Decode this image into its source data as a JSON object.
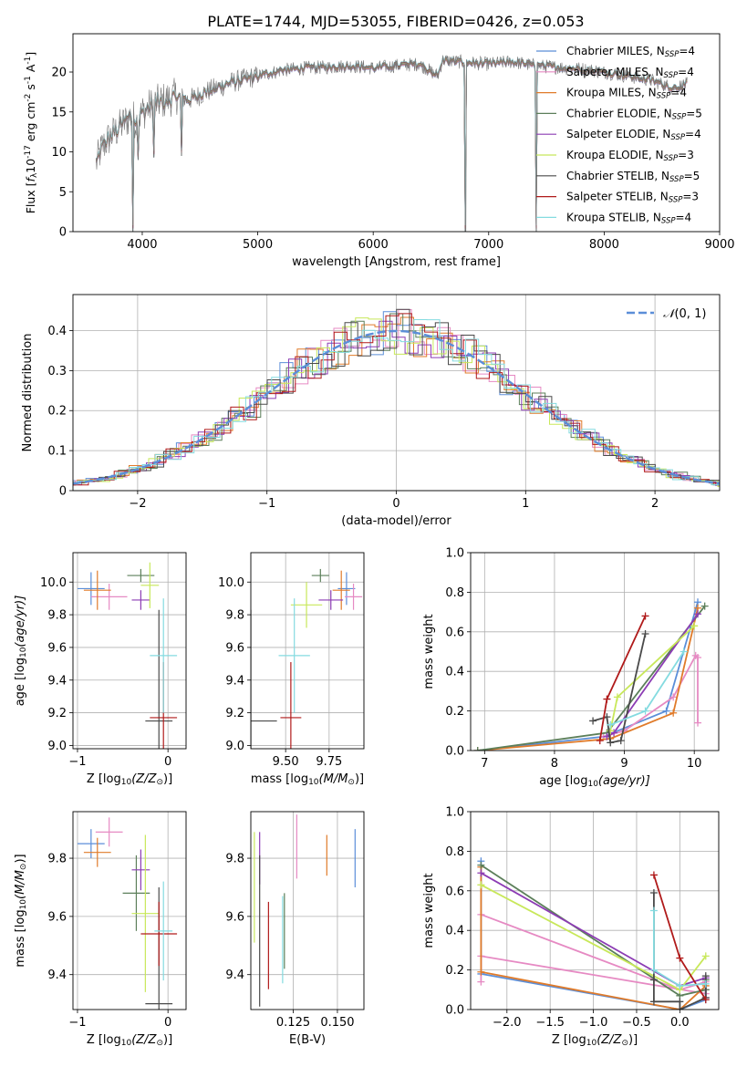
{
  "title": "PLATE=1744, MJD=53055, FIBERID=0426, z=0.053",
  "models": [
    {
      "name": "Chabrier MILES",
      "nssp": "4",
      "color": "#5b8ed8"
    },
    {
      "name": "Salpeter MILES",
      "nssp": "4",
      "color": "#e68ac3"
    },
    {
      "name": "Kroupa MILES",
      "nssp": "4",
      "color": "#e07b2a"
    },
    {
      "name": "Chabrier ELODIE",
      "nssp": "5",
      "color": "#5c7f5a"
    },
    {
      "name": "Salpeter ELODIE",
      "nssp": "4",
      "color": "#8c3cb4"
    },
    {
      "name": "Kroupa ELODIE",
      "nssp": "3",
      "color": "#c8e85a"
    },
    {
      "name": "Chabrier STELIB",
      "nssp": "5",
      "color": "#4a4a4a"
    },
    {
      "name": "Salpeter STELIB",
      "nssp": "3",
      "color": "#b01a1a"
    },
    {
      "name": "Kroupa STELIB",
      "nssp": "4",
      "color": "#84dbe0"
    }
  ],
  "nssp_prefix": "N",
  "nssp_sub": "SSP",
  "chart_data": [
    {
      "id": "spectrum",
      "type": "line",
      "xlabel": "wavelength [Angstrom, rest frame]",
      "ylabel_parts": [
        "Flux [",
        "f",
        "λ",
        "10",
        "-17",
        " erg cm",
        "-2",
        " s",
        "-1",
        " A",
        "-1",
        "]"
      ],
      "xlim": [
        3400,
        9000
      ],
      "ylim": [
        0,
        24.8
      ],
      "xticks": [
        4000,
        5000,
        6000,
        7000,
        8000,
        9000
      ],
      "yticks": [
        0,
        5,
        10,
        15,
        20
      ],
      "data_range": [
        3600,
        8720
      ],
      "anchors": {
        "x": [
          3600,
          3650,
          3700,
          3800,
          3900,
          3950,
          4000,
          4100,
          4200,
          4300,
          4400,
          4600,
          4800,
          5000,
          5200,
          5400,
          5600,
          5800,
          6000,
          6200,
          6400,
          6560,
          6600,
          6800,
          7000,
          7200,
          7400,
          7600,
          7800,
          8000,
          8200,
          8400,
          8600,
          8720
        ],
        "y": [
          8.5,
          10.5,
          11.5,
          13.0,
          14.5,
          13.8,
          15.0,
          16.0,
          16.5,
          17.0,
          16.5,
          17.8,
          18.8,
          19.5,
          20.2,
          20.5,
          20.6,
          20.8,
          20.5,
          20.8,
          21.0,
          19.5,
          21.5,
          21.2,
          21.0,
          21.3,
          20.8,
          20.6,
          20.4,
          20.0,
          19.5,
          19.0,
          18.0,
          18.5
        ]
      },
      "spikes": [
        [
          3920,
          0
        ],
        [
          3965,
          9.0
        ],
        [
          4100,
          9.3
        ],
        [
          4340,
          9.5
        ],
        [
          6800,
          0
        ],
        [
          7410,
          0
        ]
      ]
    },
    {
      "id": "residuals",
      "type": "histogram",
      "xlabel": "(data-model)/error",
      "ylabel": "Normed distribution",
      "xlim": [
        -2.5,
        2.5
      ],
      "ylim": [
        0,
        0.49
      ],
      "xticks": [
        -2,
        -1,
        0,
        1,
        2
      ],
      "yticks": [
        0,
        0.1,
        0.2,
        0.3,
        0.4
      ],
      "bin_width": 0.1,
      "legend": {
        "label_parts": [
          "𝒩",
          "(0, 1)"
        ],
        "position": "top-right"
      },
      "base_curve": "standard normal"
    },
    {
      "id": "age_vs_Z",
      "type": "scatter",
      "xlabel_parts": [
        "Z [log",
        "10",
        "(Z/Z",
        "⊙",
        ")]"
      ],
      "ylabel_parts": [
        "age  [log",
        "10",
        "(age/yr)]"
      ],
      "xlim": [
        -1.05,
        0.2
      ],
      "ylim": [
        8.98,
        10.18
      ],
      "xticks": [
        -1,
        0
      ],
      "yticks": [
        9.0,
        9.2,
        9.4,
        9.6,
        9.8,
        10.0
      ],
      "points": [
        {
          "x": -0.85,
          "y": 9.96,
          "xerr": 0.15,
          "yerr": 0.1
        },
        {
          "x": -0.65,
          "y": 9.91,
          "xerr": 0.2,
          "yerr": 0.08
        },
        {
          "x": -0.78,
          "y": 9.95,
          "xerr": 0.15,
          "yerr": 0.12
        },
        {
          "x": -0.3,
          "y": 10.04,
          "xerr": 0.15,
          "yerr": 0.04
        },
        {
          "x": -0.3,
          "y": 9.89,
          "xerr": 0.1,
          "yerr": 0.06
        },
        {
          "x": -0.2,
          "y": 9.98,
          "xerr": 0.1,
          "yerr": 0.14
        },
        {
          "x": -0.1,
          "y": 9.15,
          "xerr": 0.15,
          "yerr": 0.68
        },
        {
          "x": -0.05,
          "y": 9.17,
          "xerr": 0.15,
          "yerr": 0.34
        },
        {
          "x": -0.05,
          "y": 9.55,
          "xerr": 0.15,
          "yerr": 0.35
        }
      ]
    },
    {
      "id": "age_vs_mass",
      "type": "scatter",
      "xlabel_parts": [
        "mass [log",
        "10",
        "(M/M",
        "⊙",
        ")]"
      ],
      "ylabel": "",
      "xlim": [
        9.3,
        9.95
      ],
      "ylim": [
        8.98,
        10.18
      ],
      "xticks": [
        9.5,
        9.75
      ],
      "yticks": [
        9.0,
        9.2,
        9.4,
        9.6,
        9.8,
        10.0
      ],
      "points": [
        {
          "x": 9.85,
          "y": 9.96,
          "xerr": 0.05,
          "yerr": 0.1
        },
        {
          "x": 9.89,
          "y": 9.91,
          "xerr": 0.05,
          "yerr": 0.08
        },
        {
          "x": 9.82,
          "y": 9.95,
          "xerr": 0.05,
          "yerr": 0.12
        },
        {
          "x": 9.7,
          "y": 10.04,
          "xerr": 0.05,
          "yerr": 0.04
        },
        {
          "x": 9.76,
          "y": 9.89,
          "xerr": 0.07,
          "yerr": 0.06
        },
        {
          "x": 9.62,
          "y": 9.86,
          "xerr": 0.09,
          "yerr": 0.14
        },
        {
          "x": 9.3,
          "y": 9.15,
          "xerr": 0.15,
          "yerr": 0.68
        },
        {
          "x": 9.53,
          "y": 9.17,
          "xerr": 0.06,
          "yerr": 0.34
        },
        {
          "x": 9.55,
          "y": 9.55,
          "xerr": 0.09,
          "yerr": 0.35
        }
      ]
    },
    {
      "id": "weight_vs_age",
      "type": "line",
      "xlabel_parts": [
        "age  [log",
        "10",
        "(age/yr)]"
      ],
      "ylabel": "mass weight",
      "xlim": [
        6.8,
        10.35
      ],
      "ylim": [
        0,
        1.0
      ],
      "xticks": [
        7,
        8,
        9,
        10
      ],
      "yticks": [
        0.0,
        0.2,
        0.4,
        0.6,
        0.8,
        1.0
      ],
      "series": [
        {
          "x": [
            6.9,
            8.7,
            9.6,
            10.05
          ],
          "y": [
            0.0,
            0.07,
            0.2,
            0.75
          ]
        },
        {
          "x": [
            8.7,
            9.0,
            9.7,
            10.02,
            10.05,
            10.05
          ],
          "y": [
            0.07,
            0.1,
            0.27,
            0.48,
            0.47,
            0.14
          ]
        },
        {
          "x": [
            6.9,
            8.8,
            9.7,
            10.05
          ],
          "y": [
            0.0,
            0.06,
            0.19,
            0.72
          ]
        },
        {
          "x": [
            6.9,
            8.75,
            10.15
          ],
          "y": [
            0.0,
            0.09,
            0.73
          ]
        },
        {
          "x": [
            8.75,
            8.85,
            10.05
          ],
          "y": [
            0.07,
            0.09,
            0.69
          ]
        },
        {
          "x": [
            8.8,
            8.9,
            10.0
          ],
          "y": [
            0.1,
            0.27,
            0.63
          ]
        },
        {
          "x": [
            8.55,
            8.75,
            8.8,
            8.95,
            9.3
          ],
          "y": [
            0.15,
            0.17,
            0.04,
            0.05,
            0.59
          ]
        },
        {
          "x": [
            8.65,
            8.75,
            9.3
          ],
          "y": [
            0.05,
            0.26,
            0.68
          ]
        },
        {
          "x": [
            8.8,
            9.3,
            9.85
          ],
          "y": [
            0.13,
            0.2,
            0.5
          ]
        }
      ]
    },
    {
      "id": "mass_vs_Z",
      "type": "scatter",
      "xlabel_parts": [
        "Z [log",
        "10",
        "(Z/Z",
        "⊙",
        ")]"
      ],
      "ylabel_parts": [
        "mass [log",
        "10",
        "(M/M",
        "⊙",
        ")]"
      ],
      "xlim": [
        -1.05,
        0.2
      ],
      "ylim": [
        9.28,
        9.96
      ],
      "xticks": [
        -1,
        0
      ],
      "yticks": [
        9.4,
        9.6,
        9.8
      ],
      "points": [
        {
          "x": -0.85,
          "y": 9.85,
          "xerr": 0.15,
          "yerr": 0.05
        },
        {
          "x": -0.65,
          "y": 9.89,
          "xerr": 0.15,
          "yerr": 0.05
        },
        {
          "x": -0.78,
          "y": 9.82,
          "xerr": 0.15,
          "yerr": 0.05
        },
        {
          "x": -0.35,
          "y": 9.68,
          "xerr": 0.15,
          "yerr": 0.13
        },
        {
          "x": -0.3,
          "y": 9.76,
          "xerr": 0.1,
          "yerr": 0.07
        },
        {
          "x": -0.25,
          "y": 9.61,
          "xerr": 0.15,
          "yerr": 0.27
        },
        {
          "x": -0.1,
          "y": 9.3,
          "xerr": 0.15,
          "yerr": 0.4
        },
        {
          "x": -0.1,
          "y": 9.54,
          "xerr": 0.2,
          "yerr": 0.11
        },
        {
          "x": -0.05,
          "y": 9.55,
          "xerr": 0.1,
          "yerr": 0.17
        }
      ]
    },
    {
      "id": "mass_vs_ebv",
      "type": "scatter",
      "xlabel": "E(B-V)",
      "ylabel": "",
      "xlim": [
        0.101,
        0.165
      ],
      "ylim": [
        9.28,
        9.96
      ],
      "xticks": [
        0.125,
        0.15
      ],
      "yticks": [
        9.4,
        9.6,
        9.8
      ],
      "points": [
        {
          "x": 0.16,
          "y": 9.8,
          "yerr": 0.1
        },
        {
          "x": 0.127,
          "y": 9.84,
          "yerr": 0.11
        },
        {
          "x": 0.144,
          "y": 9.81,
          "yerr": 0.07
        },
        {
          "x": 0.12,
          "y": 9.55,
          "yerr": 0.13
        },
        {
          "x": 0.106,
          "y": 9.8,
          "yerr": 0.09
        },
        {
          "x": 0.103,
          "y": 9.7,
          "yerr": 0.19
        },
        {
          "x": 0.106,
          "y": 9.55,
          "yerr": 0.26
        },
        {
          "x": 0.111,
          "y": 9.5,
          "yerr": 0.15
        },
        {
          "x": 0.119,
          "y": 9.52,
          "yerr": 0.15
        }
      ]
    },
    {
      "id": "weight_vs_Z",
      "type": "line",
      "xlabel_parts": [
        "Z [log",
        "10",
        "(Z/Z",
        "⊙",
        ")]"
      ],
      "ylabel": "mass weight",
      "xlim": [
        -2.42,
        0.45
      ],
      "ylim": [
        0,
        1.0
      ],
      "xticks": [
        -2.0,
        -1.5,
        -1.0,
        -0.5,
        0.0
      ],
      "yticks": [
        0.0,
        0.2,
        0.4,
        0.6,
        0.8,
        1.0
      ],
      "series": [
        {
          "x": [
            -2.3,
            -2.3,
            0.0,
            0.3,
            0.3
          ],
          "y": [
            0.75,
            0.18,
            0.0,
            0.05,
            0.1
          ]
        },
        {
          "x": [
            -2.3,
            0.0,
            0.3,
            0.3,
            0.3,
            -2.3,
            -2.3
          ],
          "y": [
            0.48,
            0.1,
            0.14,
            0.1,
            0.08,
            0.27,
            0.14
          ]
        },
        {
          "x": [
            -2.3,
            -2.3,
            0.0,
            0.3
          ],
          "y": [
            0.72,
            0.19,
            0.0,
            0.12
          ]
        },
        {
          "x": [
            -2.3,
            0.0,
            0.3,
            0.3
          ],
          "y": [
            0.73,
            0.07,
            0.1,
            0.15
          ]
        },
        {
          "x": [
            -2.3,
            0.0,
            0.3,
            0.3
          ],
          "y": [
            0.69,
            0.12,
            0.16,
            0.06
          ]
        },
        {
          "x": [
            -2.3,
            0.0,
            0.3
          ],
          "y": [
            0.63,
            0.1,
            0.27
          ]
        },
        {
          "x": [
            -0.3,
            -0.3,
            -0.3,
            0.0,
            0.0,
            0.3,
            0.3
          ],
          "y": [
            0.59,
            0.15,
            0.04,
            0.04,
            0.0,
            0.06,
            0.17
          ]
        },
        {
          "x": [
            -0.3,
            0.0,
            0.3
          ],
          "y": [
            0.68,
            0.26,
            0.05
          ]
        },
        {
          "x": [
            -0.3,
            -0.3,
            0.0,
            0.3
          ],
          "y": [
            0.5,
            0.2,
            0.12,
            0.13
          ]
        }
      ]
    }
  ]
}
